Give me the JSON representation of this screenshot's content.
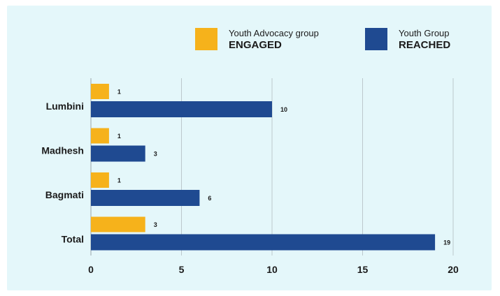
{
  "chart_data": {
    "type": "bar",
    "orientation": "horizontal",
    "categories": [
      "Lumbini",
      "Madhesh",
      "Bagmati",
      "Total"
    ],
    "series": [
      {
        "name_top": "Youth Advocacy group",
        "name_bottom": "ENGAGED",
        "color": "#f6b21b",
        "values": [
          1,
          1,
          1,
          3
        ]
      },
      {
        "name_top": "Youth Group",
        "name_bottom": "REACHED",
        "color": "#1f4a91",
        "values": [
          10,
          3,
          6,
          19
        ]
      }
    ],
    "xticks": [
      "0",
      "5",
      "10",
      "15",
      "20"
    ],
    "xlim": [
      0,
      20
    ],
    "grid": "vertical",
    "legend_position": "top-right"
  }
}
